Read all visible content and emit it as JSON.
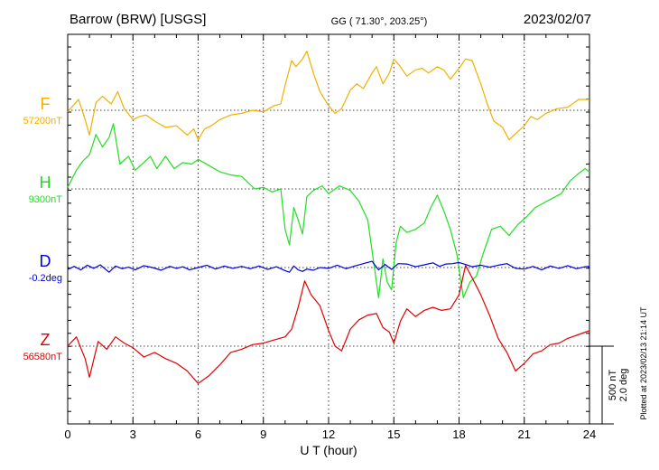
{
  "header": {
    "station": "Barrow (BRW)  [USGS]",
    "coords": "GG ( 71.30°, 203.25°)",
    "date": "2023/02/07"
  },
  "footer": {
    "plotted_note": "Plotted at 2023/02/13 21:14 UT"
  },
  "colors": {
    "F": "#f0b000",
    "H": "#22dd22",
    "D": "#0000e0",
    "Z": "#e00000",
    "frame": "#000000"
  },
  "chart_data": {
    "type": "line",
    "title": "Barrow (BRW)  [USGS]",
    "xlabel": "U T (hour)",
    "xlim": [
      0,
      24
    ],
    "xticks": [
      0,
      3,
      6,
      9,
      12,
      15,
      18,
      21,
      24
    ],
    "grid": true,
    "scale_bar": {
      "line1": "500 nT",
      "line2": "2.0 deg"
    },
    "series": [
      {
        "name": "F",
        "baseline": "57200nT",
        "unit": "nT",
        "x": [
          0,
          0.5,
          0.8,
          1.0,
          1.3,
          1.6,
          2.0,
          2.3,
          2.6,
          3.0,
          3.3,
          3.6,
          4.0,
          4.5,
          5.0,
          5.5,
          5.8,
          6.0,
          6.3,
          6.6,
          7.0,
          7.5,
          8.0,
          8.5,
          9.0,
          9.5,
          9.8,
          10.0,
          10.3,
          10.5,
          10.8,
          11.0,
          11.3,
          11.6,
          12.0,
          12.3,
          12.6,
          13.0,
          13.3,
          13.6,
          14.0,
          14.2,
          14.5,
          14.8,
          15.0,
          15.3,
          15.6,
          16.0,
          16.3,
          16.6,
          17.0,
          17.3,
          17.6,
          18.0,
          18.3,
          18.6,
          19.0,
          19.3,
          19.6,
          20.0,
          20.3,
          20.6,
          21.0,
          21.3,
          21.6,
          22.0,
          22.5,
          23.0,
          23.5,
          24.0
        ],
        "values": [
          -10,
          70,
          -60,
          -160,
          50,
          90,
          40,
          120,
          10,
          -60,
          -40,
          -30,
          -70,
          -110,
          -100,
          -160,
          -120,
          -190,
          -120,
          -100,
          -60,
          -30,
          -20,
          0,
          -10,
          30,
          40,
          160,
          320,
          280,
          330,
          380,
          240,
          120,
          30,
          -20,
          10,
          130,
          170,
          140,
          240,
          280,
          170,
          240,
          330,
          280,
          220,
          260,
          270,
          240,
          280,
          260,
          200,
          270,
          330,
          320,
          170,
          40,
          -70,
          -110,
          -190,
          -150,
          -100,
          -40,
          -60,
          -20,
          10,
          20,
          70,
          70
        ]
      },
      {
        "name": "H",
        "baseline": "9300nT",
        "unit": "nT",
        "x": [
          0,
          0.4,
          0.7,
          1.0,
          1.3,
          1.6,
          1.9,
          2.1,
          2.4,
          2.8,
          3.1,
          3.5,
          3.8,
          4.1,
          4.5,
          4.9,
          5.3,
          5.7,
          6.0,
          6.5,
          7.0,
          7.5,
          8.0,
          8.3,
          8.6,
          9.0,
          9.4,
          9.8,
          10.0,
          10.2,
          10.4,
          10.6,
          10.8,
          11.0,
          11.3,
          11.7,
          12.0,
          12.5,
          13.0,
          13.4,
          13.8,
          14.1,
          14.3,
          14.5,
          14.7,
          14.9,
          15.1,
          15.3,
          15.6,
          16.0,
          16.4,
          16.7,
          17.0,
          17.3,
          17.6,
          17.9,
          18.2,
          18.5,
          18.8,
          19.1,
          19.5,
          19.9,
          20.3,
          20.7,
          21.1,
          21.5,
          21.9,
          22.3,
          22.7,
          23.1,
          23.5,
          23.8,
          24.0
        ],
        "values": [
          10,
          120,
          180,
          220,
          350,
          270,
          330,
          420,
          160,
          210,
          120,
          170,
          210,
          130,
          210,
          130,
          170,
          160,
          190,
          150,
          110,
          90,
          80,
          40,
          0,
          10,
          -20,
          0,
          -260,
          -360,
          -120,
          -200,
          -290,
          -50,
          -10,
          20,
          -30,
          20,
          -10,
          -80,
          -200,
          -500,
          -700,
          -450,
          -600,
          -650,
          -350,
          -240,
          -280,
          -260,
          -220,
          -120,
          -40,
          -140,
          -260,
          -420,
          -700,
          -600,
          -560,
          -420,
          -260,
          -240,
          -300,
          -230,
          -180,
          -120,
          -90,
          -60,
          -30,
          50,
          100,
          130,
          110
        ]
      },
      {
        "name": "D",
        "baseline": "-0.2deg",
        "unit": "deg",
        "x": [
          0,
          0.3,
          0.6,
          0.9,
          1.2,
          1.5,
          1.9,
          2.2,
          2.5,
          2.8,
          3.1,
          3.5,
          3.9,
          4.3,
          4.7,
          5.0,
          5.3,
          5.6,
          6.0,
          6.4,
          6.8,
          7.2,
          7.6,
          8.0,
          8.4,
          8.8,
          9.2,
          9.6,
          10.0,
          10.2,
          10.4,
          10.6,
          10.8,
          11.0,
          11.3,
          11.6,
          12.0,
          12.4,
          12.8,
          13.2,
          13.6,
          14.0,
          14.3,
          14.6,
          14.9,
          15.2,
          15.6,
          16.0,
          16.4,
          16.8,
          17.1,
          17.4,
          17.7,
          18.0,
          18.3,
          18.6,
          19.0,
          19.4,
          19.8,
          20.2,
          20.6,
          21.0,
          21.4,
          21.8,
          22.2,
          22.6,
          23.0,
          23.4,
          23.8,
          24.0
        ],
        "values": [
          -0.05,
          0.03,
          -0.06,
          0.06,
          -0.02,
          0.07,
          -0.12,
          0.04,
          -0.03,
          0.01,
          -0.06,
          0.05,
          0.0,
          -0.07,
          0.03,
          -0.02,
          0.02,
          -0.06,
          0.0,
          0.06,
          -0.04,
          0.04,
          -0.02,
          0.03,
          -0.03,
          0.04,
          -0.05,
          0.02,
          -0.08,
          -0.12,
          0.04,
          -0.06,
          -0.1,
          -0.04,
          -0.07,
          0.0,
          -0.02,
          0.06,
          -0.03,
          0.04,
          0.1,
          0.16,
          -0.06,
          0.08,
          -0.05,
          0.1,
          0.09,
          0.02,
          0.07,
          0.12,
          0.03,
          0.09,
          0.1,
          0.13,
          0.08,
          0.02,
          0.06,
          0.01,
          0.06,
          0.1,
          -0.02,
          -0.04,
          0.03,
          -0.06,
          0.04,
          -0.02,
          0.05,
          -0.03,
          0.02,
          0.03
        ]
      },
      {
        "name": "Z",
        "baseline": "56580nT",
        "unit": "nT",
        "x": [
          0,
          0.4,
          0.8,
          1.0,
          1.4,
          1.8,
          2.2,
          2.6,
          3.0,
          3.5,
          4.0,
          4.5,
          5.0,
          5.5,
          6.0,
          6.5,
          7.0,
          7.5,
          8.0,
          8.5,
          9.0,
          9.5,
          10.0,
          10.3,
          10.6,
          10.9,
          11.2,
          11.6,
          12.0,
          12.3,
          12.6,
          13.0,
          13.4,
          13.8,
          14.2,
          14.5,
          14.8,
          15.0,
          15.3,
          15.6,
          16.0,
          16.4,
          16.8,
          17.2,
          17.6,
          18.0,
          18.3,
          18.6,
          19.0,
          19.4,
          19.8,
          20.2,
          20.6,
          21.0,
          21.4,
          21.8,
          22.2,
          22.6,
          23.0,
          23.4,
          23.8,
          24.0
        ],
        "values": [
          0,
          60,
          -80,
          -200,
          30,
          -20,
          60,
          20,
          -10,
          -70,
          -40,
          -80,
          -110,
          -160,
          -240,
          -190,
          -120,
          -40,
          -20,
          10,
          20,
          40,
          60,
          110,
          250,
          420,
          330,
          260,
          100,
          0,
          -30,
          110,
          170,
          200,
          210,
          120,
          90,
          20,
          160,
          240,
          190,
          230,
          250,
          230,
          240,
          330,
          520,
          440,
          330,
          200,
          50,
          -40,
          -160,
          -110,
          -50,
          -30,
          10,
          20,
          50,
          70,
          90,
          100
        ]
      }
    ]
  }
}
